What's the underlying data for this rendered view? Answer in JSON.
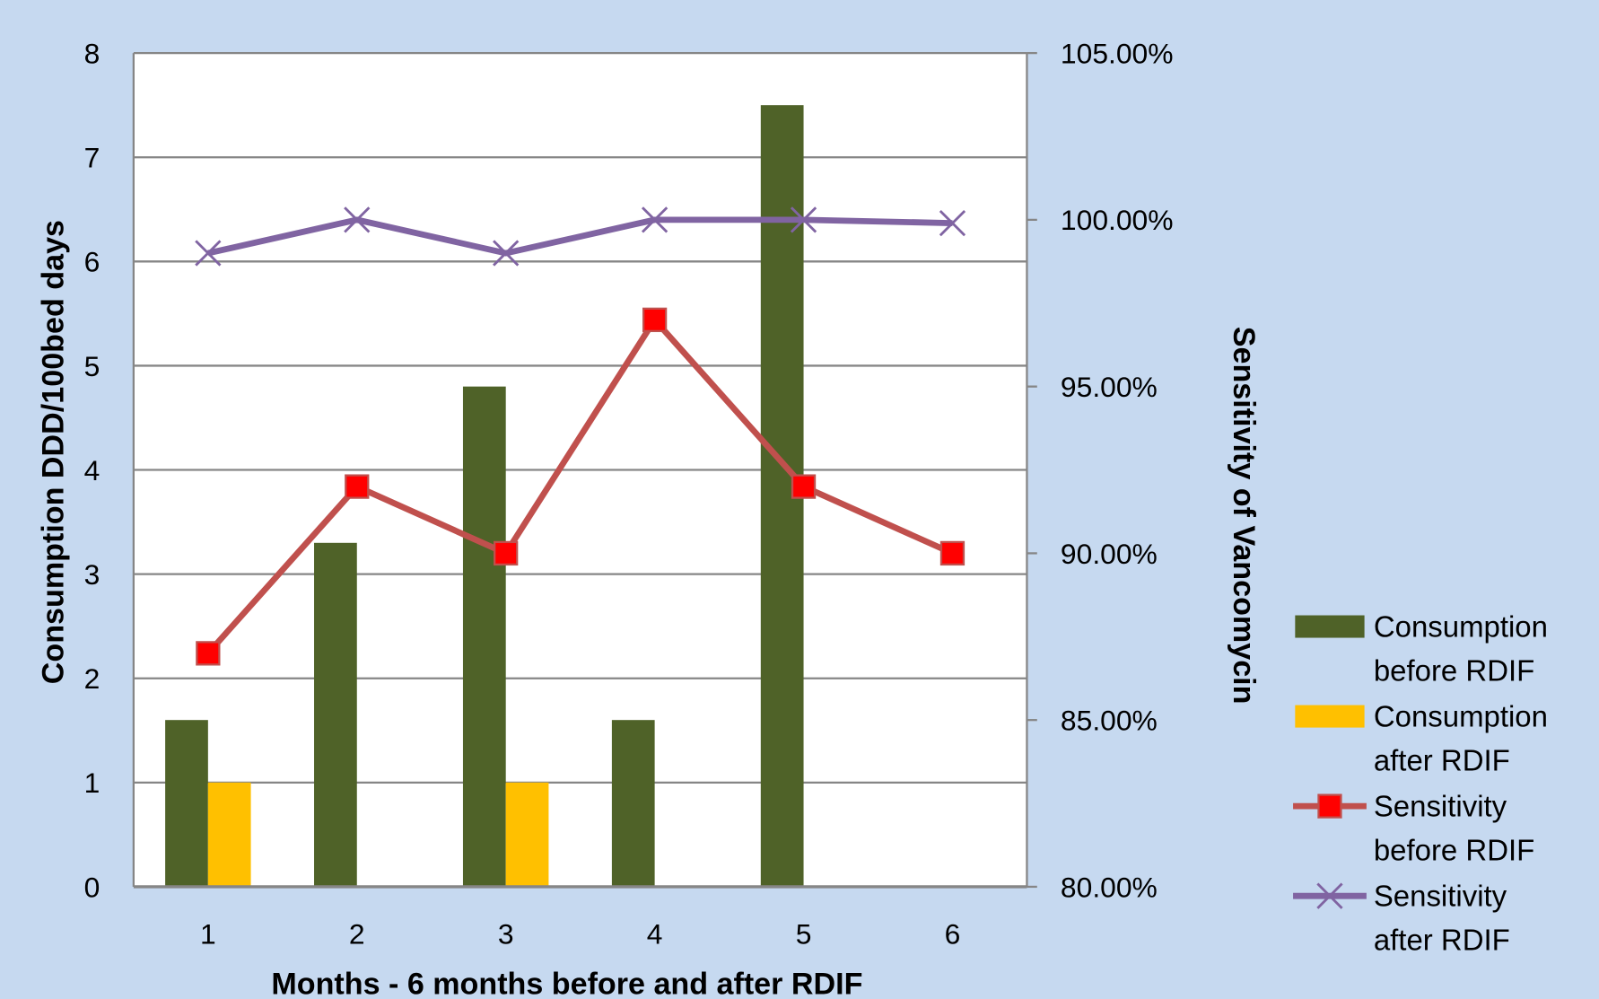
{
  "chart_data": {
    "type": "bar+line",
    "categories": [
      "1",
      "2",
      "3",
      "4",
      "5",
      "6"
    ],
    "xlabel": "Months - 6 months before and after RDIF",
    "ylabel": "Consumption  DDD/100bed days",
    "y2label": "Sensitivity  of  Vancomycin",
    "ylim": [
      0,
      8
    ],
    "yticks": [
      "0",
      "1",
      "2",
      "3",
      "4",
      "5",
      "6",
      "7",
      "8"
    ],
    "y2lim": [
      80,
      105
    ],
    "y2ticks": [
      "80.00%",
      "85.00%",
      "90.00%",
      "95.00%",
      "100.00%",
      "105.00%"
    ],
    "grid": true,
    "legend_position": "right",
    "series": [
      {
        "name": "Consumption before RDIF",
        "legend": [
          "Consumption",
          "before RDIF"
        ],
        "type": "bar",
        "axis": "left",
        "color": "#4f6228",
        "values": [
          1.6,
          3.3,
          4.8,
          1.6,
          7.5,
          0
        ]
      },
      {
        "name": "Consumption after RDIF",
        "legend": [
          "Consumption",
          "after RDIF"
        ],
        "type": "bar",
        "axis": "left",
        "color": "#ffc000",
        "values": [
          1,
          0,
          1,
          0,
          0,
          0
        ]
      },
      {
        "name": "Sensitivity before RDIF",
        "legend": [
          "Sensitivity",
          "before RDIF"
        ],
        "type": "line",
        "axis": "right",
        "color": "#c0504d",
        "marker": "square",
        "marker_color": "#ff0000",
        "values": [
          87,
          92,
          90,
          97,
          92,
          90
        ]
      },
      {
        "name": "Sensitivity after RDIF",
        "legend": [
          "Sensitivity",
          "after RDIF"
        ],
        "type": "line",
        "axis": "right",
        "color": "#8064a2",
        "marker": "x",
        "values": [
          99,
          100,
          99,
          100,
          100,
          99.9
        ]
      }
    ]
  }
}
